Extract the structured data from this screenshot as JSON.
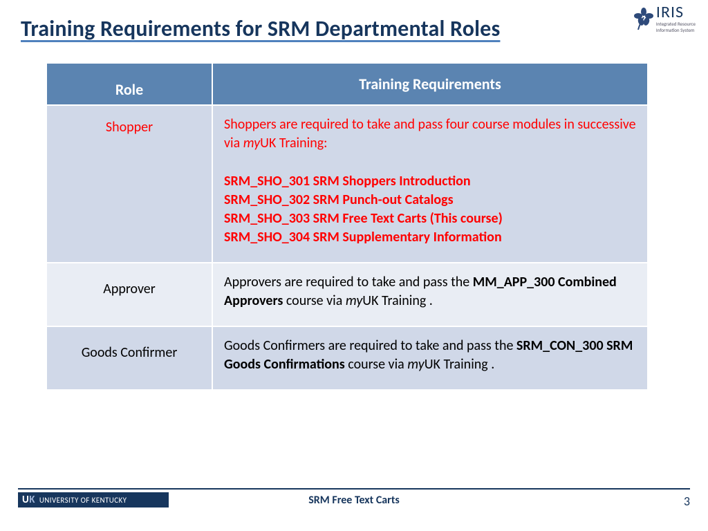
{
  "title": "Training Requirements for SRM Departmental Roles",
  "logo": {
    "main": "IRIS",
    "sub1": "Integrated Resource",
    "sub2": "Information System"
  },
  "table": {
    "headers": {
      "role": "Role",
      "req": "Training Requirements"
    },
    "header_bg": "#5b84b1",
    "row_colors": [
      "#d0d8e8",
      "#e9edf4",
      "#d0d8e8"
    ],
    "rows": [
      {
        "role": "Shopper",
        "role_color": "#ff0000",
        "req_color": "#ff0000",
        "intro": "Shoppers are required to take and pass four course modules in successive via <i>my</i>UK Training:",
        "courses": [
          "SRM_SHO_301 SRM Shoppers Introduction",
          "SRM_SHO_302 SRM Punch-out Catalogs",
          "SRM_SHO_303 SRM Free Text Carts (This course)",
          "SRM_SHO_304 SRM Supplementary Information"
        ]
      },
      {
        "role": "Approver",
        "role_color": "#000000",
        "req_color": "#000000",
        "intro": "Approvers are required to take and pass the <b>MM_APP_300 Combined Approvers</b> course via <i>my</i>UK Training .",
        "courses": []
      },
      {
        "role": "Goods Confirmer",
        "role_color": "#000000",
        "req_color": "#000000",
        "intro": "Goods Confirmers are required to take and pass the <b>SRM_CON_300 SRM Goods Confirmations</b> course via <i>my</i>UK Training .",
        "courses": []
      }
    ]
  },
  "footer": {
    "univ_short_u": "U",
    "univ_short_k": "K",
    "univ": "UNIVERSITY OF KENTUCKY",
    "title": "SRM Free Text Carts",
    "page": "3"
  },
  "colors": {
    "title_color": "#17365d",
    "underline_color": "#4f81bd",
    "accent_red": "#ff0000"
  }
}
